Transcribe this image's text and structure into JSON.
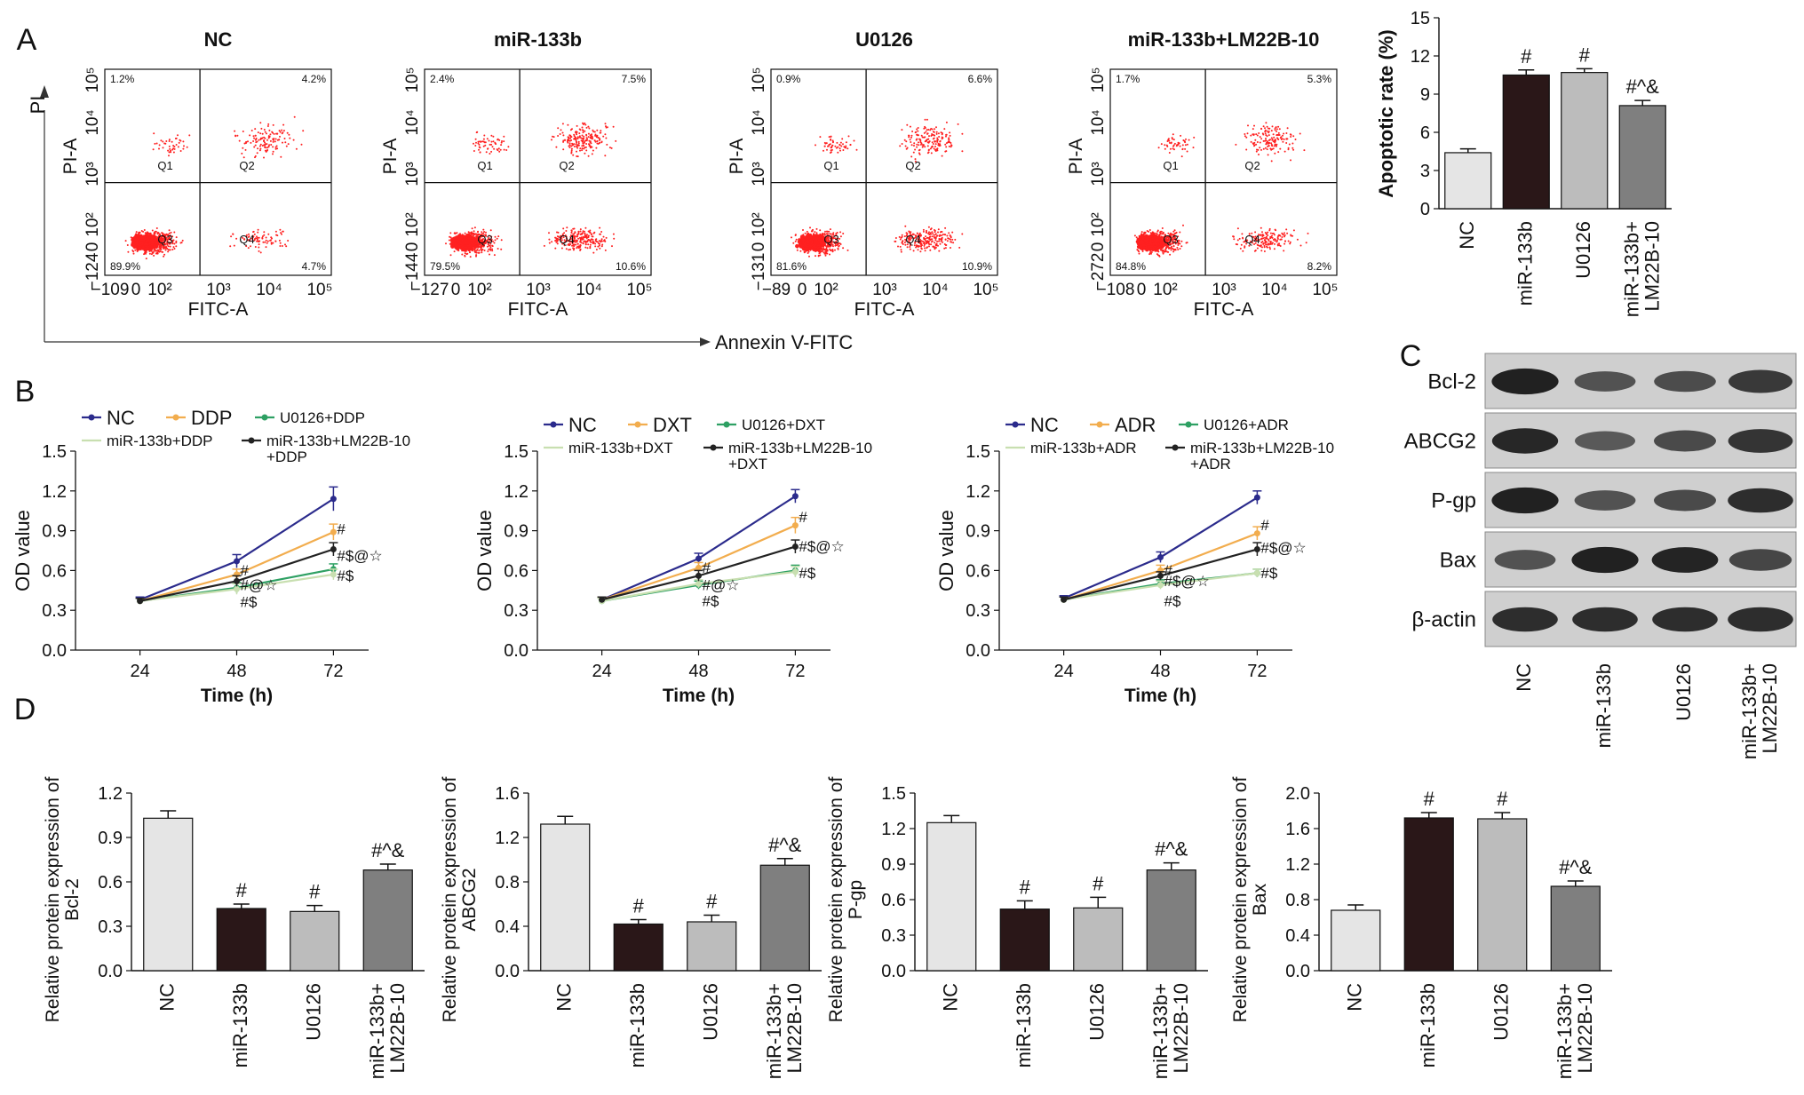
{
  "panel_letters": {
    "A": "A",
    "B": "B",
    "C": "C",
    "D": "D"
  },
  "colors": {
    "NC": "#e5e5e5",
    "miR-133b": "#2a1718",
    "U0126": "#bcbcbc",
    "combo": "#7f7f7f",
    "line_NC": "#2b2b8c",
    "line_drug": "#f2ad4e",
    "line_U0126": "#2ea063",
    "line_miR": "#c8dfb0",
    "line_combo": "#222222",
    "dots": "#ff2020"
  },
  "flow": {
    "panels": [
      {
        "title": "NC",
        "y_ticks": [
          "10⁵",
          "10⁴",
          "10³",
          "10²",
          "0",
          "−124"
        ],
        "x_ticks": [
          "−109",
          "0",
          "10²",
          "10³",
          "10⁴",
          "10⁵"
        ],
        "q_ul": "1.2%",
        "q_ur": "4.2%",
        "q_ll": "89.9%",
        "q_lr": "4.7%",
        "xlabel": "FITC-A",
        "ylabel": "PI-A",
        "density": [
          0.45,
          0.14,
          0.26,
          0.12
        ]
      },
      {
        "title": "miR-133b",
        "y_ticks": [
          "10⁵",
          "10⁴",
          "10³",
          "10²",
          "0",
          "−144"
        ],
        "x_ticks": [
          "−127",
          "0",
          "10²",
          "10³",
          "10⁴",
          "10⁵"
        ],
        "q_ul": "2.4%",
        "q_ur": "7.5%",
        "q_ll": "79.5%",
        "q_lr": "10.6%",
        "xlabel": "FITC-A",
        "ylabel": "PI-A",
        "density": [
          0.35,
          0.2,
          0.4,
          0.35
        ]
      },
      {
        "title": "U0126",
        "y_ticks": [
          "10⁵",
          "10⁴",
          "10³",
          "10²",
          "0",
          "−131"
        ],
        "x_ticks": [
          "−89",
          "0",
          "10²",
          "10³",
          "10⁴",
          "10⁵"
        ],
        "q_ul": "0.9%",
        "q_ur": "6.6%",
        "q_ll": "81.6%",
        "q_lr": "10.9%",
        "xlabel": "FITC-A",
        "ylabel": "PI-A",
        "density": [
          0.4,
          0.18,
          0.35,
          0.35
        ]
      },
      {
        "title": "miR-133b+LM22B-10",
        "y_ticks": [
          "10⁵",
          "10⁴",
          "10³",
          "10²",
          "0",
          "−272"
        ],
        "x_ticks": [
          "−108",
          "0",
          "10²",
          "10³",
          "10⁴",
          "10⁵"
        ],
        "q_ul": "1.7%",
        "q_ur": "5.3%",
        "q_ll": "84.8%",
        "q_lr": "8.2%",
        "xlabel": "FITC-A",
        "ylabel": "PI-A",
        "density": [
          0.42,
          0.16,
          0.3,
          0.25
        ]
      }
    ],
    "quad_labels": [
      "Q1",
      "Q2",
      "Q3",
      "Q4"
    ],
    "outer_y": "PI",
    "outer_x": "Annexin V-FITC"
  },
  "chart_data": [
    {
      "type": "bar",
      "id": "apoptotic",
      "categories": [
        "NC",
        "miR-133b",
        "U0126",
        "miR-133b+\nLM22B-10"
      ],
      "values": [
        4.4,
        10.5,
        10.7,
        8.1
      ],
      "errors": [
        0.3,
        0.4,
        0.3,
        0.4
      ],
      "annotations": [
        "",
        "#",
        "#",
        "#^&"
      ],
      "ylabel": "Apoptotic rate (%)",
      "ylim": [
        0,
        15
      ],
      "yticks": [
        0,
        3,
        6,
        9,
        12,
        15
      ],
      "ytick_labels": [
        "0",
        "3",
        "6",
        "9",
        "12",
        "15"
      ]
    },
    {
      "type": "line",
      "id": "od_ddp",
      "x": [
        24,
        48,
        72
      ],
      "xtick_labels": [
        "24",
        "48",
        "72"
      ],
      "xlabel": "Time (h)",
      "ylabel": "OD value",
      "ylim": [
        0,
        1.5
      ],
      "yticks": [
        0,
        0.3,
        0.6,
        0.9,
        1.2,
        1.5
      ],
      "ytick_labels": [
        "0.0",
        "0.3",
        "0.6",
        "0.9",
        "1.2",
        "1.5"
      ],
      "series": [
        {
          "name": "NC",
          "values": [
            0.38,
            0.67,
            1.14
          ],
          "errors": [
            0.02,
            0.05,
            0.09
          ]
        },
        {
          "name": "DDP",
          "values": [
            0.37,
            0.57,
            0.89
          ],
          "errors": [
            0.02,
            0.04,
            0.06
          ]
        },
        {
          "name": "U0126+DDP",
          "values": [
            0.37,
            0.47,
            0.61
          ],
          "errors": [
            0.02,
            0.04,
            0.04
          ]
        },
        {
          "name": "miR-133b+DDP",
          "values": [
            0.37,
            0.46,
            0.57
          ],
          "errors": [
            0.02,
            0.04,
            0.04
          ]
        },
        {
          "name": "miR-133b+LM22B-10\n+DDP",
          "values": [
            0.37,
            0.52,
            0.76
          ],
          "errors": [
            0.02,
            0.04,
            0.05
          ]
        }
      ],
      "annotations": [
        {
          "x": 48,
          "y": 0.61,
          "text": "#"
        },
        {
          "x": 48,
          "y": 0.5,
          "text": "#@☆"
        },
        {
          "x": 48,
          "y": 0.37,
          "text": "#$"
        },
        {
          "x": 72,
          "y": 0.92,
          "text": "#"
        },
        {
          "x": 72,
          "y": 0.72,
          "text": "#$@☆"
        },
        {
          "x": 72,
          "y": 0.57,
          "text": "#$"
        }
      ]
    },
    {
      "type": "line",
      "id": "od_dxt",
      "x": [
        24,
        48,
        72
      ],
      "xtick_labels": [
        "24",
        "48",
        "72"
      ],
      "xlabel": "Time (h)",
      "ylabel": "OD value",
      "ylim": [
        0,
        1.5
      ],
      "yticks": [
        0,
        0.3,
        0.6,
        0.9,
        1.2,
        1.5
      ],
      "ytick_labels": [
        "0.0",
        "0.3",
        "0.6",
        "0.9",
        "1.2",
        "1.5"
      ],
      "series": [
        {
          "name": "NC",
          "values": [
            0.38,
            0.69,
            1.16
          ],
          "errors": [
            0.02,
            0.04,
            0.05
          ]
        },
        {
          "name": "DXT",
          "values": [
            0.38,
            0.62,
            0.94
          ],
          "errors": [
            0.02,
            0.04,
            0.06
          ]
        },
        {
          "name": "U0126+DXT",
          "values": [
            0.37,
            0.49,
            0.6
          ],
          "errors": [
            0.02,
            0.03,
            0.04
          ]
        },
        {
          "name": "miR-133b+DXT",
          "values": [
            0.37,
            0.5,
            0.59
          ],
          "errors": [
            0.02,
            0.03,
            0.04
          ]
        },
        {
          "name": "miR-133b+LM22B-10\n+DXT",
          "values": [
            0.38,
            0.56,
            0.78
          ],
          "errors": [
            0.02,
            0.04,
            0.05
          ]
        }
      ],
      "annotations": [
        {
          "x": 48,
          "y": 0.63,
          "text": "#"
        },
        {
          "x": 48,
          "y": 0.5,
          "text": "#@☆"
        },
        {
          "x": 48,
          "y": 0.38,
          "text": "#$"
        },
        {
          "x": 72,
          "y": 1.01,
          "text": "#"
        },
        {
          "x": 72,
          "y": 0.79,
          "text": "#$@☆"
        },
        {
          "x": 72,
          "y": 0.59,
          "text": "#$"
        }
      ]
    },
    {
      "type": "line",
      "id": "od_adr",
      "x": [
        24,
        48,
        72
      ],
      "xtick_labels": [
        "24",
        "48",
        "72"
      ],
      "xlabel": "Time (h)",
      "ylabel": "OD value",
      "ylim": [
        0,
        1.5
      ],
      "yticks": [
        0,
        0.3,
        0.6,
        0.9,
        1.2,
        1.5
      ],
      "ytick_labels": [
        "0.0",
        "0.3",
        "0.6",
        "0.9",
        "1.2",
        "1.5"
      ],
      "series": [
        {
          "name": "NC",
          "values": [
            0.39,
            0.7,
            1.15
          ],
          "errors": [
            0.02,
            0.04,
            0.05
          ]
        },
        {
          "name": "ADR",
          "values": [
            0.38,
            0.6,
            0.88
          ],
          "errors": [
            0.02,
            0.04,
            0.05
          ]
        },
        {
          "name": "U0126+ADR",
          "values": [
            0.38,
            0.5,
            0.58
          ],
          "errors": [
            0.02,
            0.03,
            0.03
          ]
        },
        {
          "name": "miR-133b+ADR",
          "values": [
            0.38,
            0.49,
            0.58
          ],
          "errors": [
            0.02,
            0.03,
            0.03
          ]
        },
        {
          "name": "miR-133b+LM22B-10\n+ADR",
          "values": [
            0.38,
            0.56,
            0.76
          ],
          "errors": [
            0.02,
            0.03,
            0.05
          ]
        }
      ],
      "annotations": [
        {
          "x": 48,
          "y": 0.61,
          "text": "#"
        },
        {
          "x": 48,
          "y": 0.53,
          "text": "#$@☆"
        },
        {
          "x": 48,
          "y": 0.38,
          "text": "#$"
        },
        {
          "x": 72,
          "y": 0.95,
          "text": "#"
        },
        {
          "x": 72,
          "y": 0.78,
          "text": "#$@☆"
        },
        {
          "x": 72,
          "y": 0.59,
          "text": "#$"
        }
      ]
    },
    {
      "type": "bar",
      "id": "bcl2",
      "categories": [
        "NC",
        "miR-133b",
        "U0126",
        "miR-133b+\nLM22B-10"
      ],
      "values": [
        1.03,
        0.42,
        0.4,
        0.68
      ],
      "errors": [
        0.05,
        0.03,
        0.04,
        0.04
      ],
      "annotations": [
        "",
        "#",
        "#",
        "#^&"
      ],
      "ylabel": "Relative protein expression of\nBcl-2",
      "ylim": [
        0,
        1.2
      ],
      "yticks": [
        0,
        0.3,
        0.6,
        0.9,
        1.2
      ],
      "ytick_labels": [
        "0.0",
        "0.3",
        "0.6",
        "0.9",
        "1.2"
      ]
    },
    {
      "type": "bar",
      "id": "abcg2",
      "categories": [
        "NC",
        "miR-133b",
        "U0126",
        "miR-133b+\nLM22B-10"
      ],
      "values": [
        1.32,
        0.42,
        0.44,
        0.95
      ],
      "errors": [
        0.07,
        0.04,
        0.06,
        0.06
      ],
      "annotations": [
        "",
        "#",
        "#",
        "#^&"
      ],
      "ylabel": "Relative protein expression of\nABCG2",
      "ylim": [
        0,
        1.6
      ],
      "yticks": [
        0,
        0.4,
        0.8,
        1.2,
        1.6
      ],
      "ytick_labels": [
        "0.0",
        "0.4",
        "0.8",
        "1.2",
        "1.6"
      ]
    },
    {
      "type": "bar",
      "id": "pgp",
      "categories": [
        "NC",
        "miR-133b",
        "U0126",
        "miR-133b+\nLM22B-10"
      ],
      "values": [
        1.25,
        0.52,
        0.53,
        0.85
      ],
      "errors": [
        0.06,
        0.07,
        0.09,
        0.06
      ],
      "annotations": [
        "",
        "#",
        "#",
        "#^&"
      ],
      "ylabel": "Relative protein expression of\nP-gp",
      "ylim": [
        0,
        1.5
      ],
      "yticks": [
        0,
        0.3,
        0.6,
        0.9,
        1.2,
        1.5
      ],
      "ytick_labels": [
        "0.0",
        "0.3",
        "0.6",
        "0.9",
        "1.2",
        "1.5"
      ]
    },
    {
      "type": "bar",
      "id": "bax",
      "categories": [
        "NC",
        "miR-133b",
        "U0126",
        "miR-133b+\nLM22B-10"
      ],
      "values": [
        0.68,
        1.72,
        1.71,
        0.95
      ],
      "errors": [
        0.06,
        0.06,
        0.07,
        0.06
      ],
      "annotations": [
        "",
        "#",
        "#",
        "#^&"
      ],
      "ylabel": "Relative protein expression of\nBax",
      "ylim": [
        0,
        2.0
      ],
      "yticks": [
        0,
        0.4,
        0.8,
        1.2,
        1.6,
        2.0
      ],
      "ytick_labels": [
        "0.0",
        "0.4",
        "0.8",
        "1.2",
        "1.6",
        "2.0"
      ]
    }
  ],
  "western": {
    "rows": [
      "Bcl-2",
      "ABCG2",
      "P-gp",
      "Bax",
      "β-actin"
    ],
    "lanes": [
      "NC",
      "miR-133b",
      "U0126",
      "miR-133b+\nLM22B-10"
    ],
    "intensities": [
      [
        0.95,
        0.55,
        0.6,
        0.75
      ],
      [
        0.9,
        0.5,
        0.62,
        0.8
      ],
      [
        0.95,
        0.55,
        0.62,
        0.85
      ],
      [
        0.55,
        0.95,
        0.92,
        0.65
      ],
      [
        0.85,
        0.85,
        0.85,
        0.85
      ]
    ]
  }
}
